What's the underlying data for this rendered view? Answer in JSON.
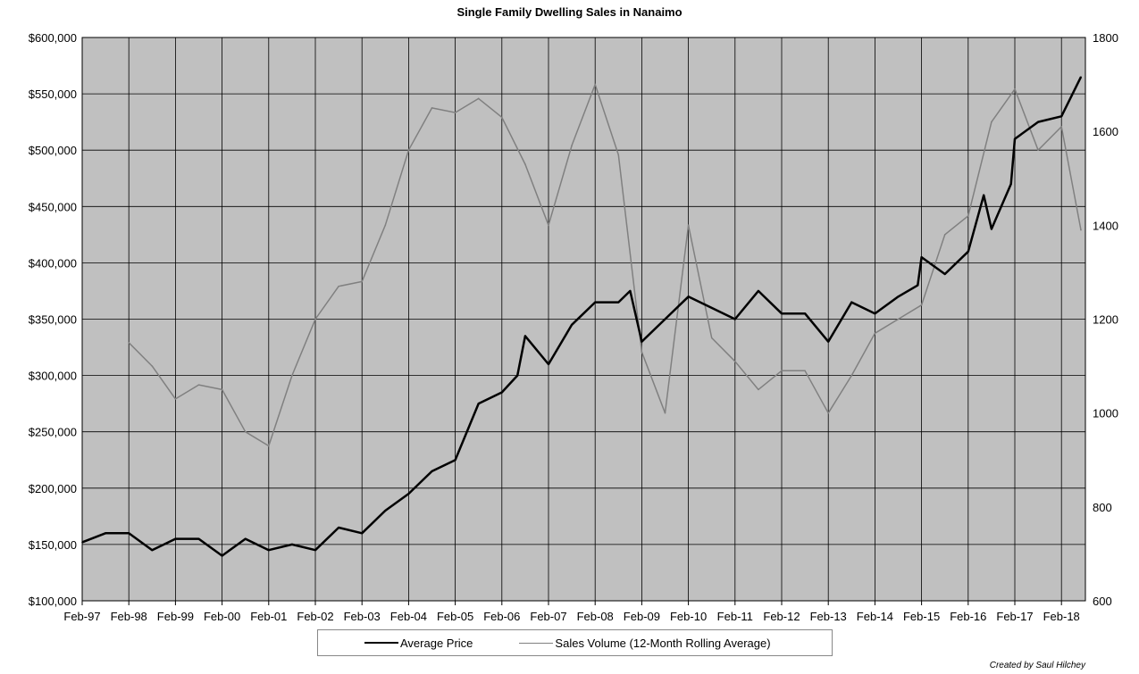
{
  "chart_data": {
    "type": "line",
    "title": "Single Family Dwelling Sales in Nanaimo",
    "credit": "Created by Saul Hilchey",
    "x_ticks": [
      "Feb-97",
      "Feb-98",
      "Feb-99",
      "Feb-00",
      "Feb-01",
      "Feb-02",
      "Feb-03",
      "Feb-04",
      "Feb-05",
      "Feb-06",
      "Feb-07",
      "Feb-08",
      "Feb-09",
      "Feb-10",
      "Feb-11",
      "Feb-12",
      "Feb-13",
      "Feb-14",
      "Feb-15",
      "Feb-16",
      "Feb-17",
      "Feb-18"
    ],
    "y_left": {
      "range": [
        100000,
        600000
      ],
      "ticks": [
        "$100,000",
        "$150,000",
        "$200,000",
        "$250,000",
        "$300,000",
        "$350,000",
        "$400,000",
        "$450,000",
        "$500,000",
        "$550,000",
        "$600,000"
      ]
    },
    "y_right": {
      "range": [
        600,
        1800
      ],
      "ticks": [
        "600",
        "800",
        "1000",
        "1200",
        "1400",
        "1600",
        "1800"
      ]
    },
    "grid": true,
    "legend_position": "bottom",
    "series": [
      {
        "name": "Average Price",
        "axis": "left",
        "color": "#000000",
        "x": [
          "1997-02",
          "1997-08",
          "1998-02",
          "1998-08",
          "1999-02",
          "1999-08",
          "2000-02",
          "2000-08",
          "2001-02",
          "2001-08",
          "2002-02",
          "2002-08",
          "2003-02",
          "2003-08",
          "2004-02",
          "2004-08",
          "2005-02",
          "2005-08",
          "2006-02",
          "2006-06",
          "2006-08",
          "2007-02",
          "2007-08",
          "2008-02",
          "2008-08",
          "2008-11",
          "2009-02",
          "2009-08",
          "2010-02",
          "2010-08",
          "2011-02",
          "2011-08",
          "2012-02",
          "2012-08",
          "2013-02",
          "2013-08",
          "2014-02",
          "2014-08",
          "2015-01",
          "2015-02",
          "2015-08",
          "2016-02",
          "2016-06",
          "2016-08",
          "2017-01",
          "2017-02",
          "2017-08",
          "2018-02",
          "2018-07"
        ],
        "values": [
          152000,
          160000,
          160000,
          145000,
          155000,
          155000,
          140000,
          155000,
          145000,
          150000,
          145000,
          165000,
          160000,
          180000,
          195000,
          215000,
          225000,
          275000,
          285000,
          300000,
          335000,
          310000,
          345000,
          365000,
          365000,
          375000,
          330000,
          350000,
          370000,
          360000,
          350000,
          375000,
          355000,
          355000,
          330000,
          365000,
          355000,
          370000,
          380000,
          405000,
          390000,
          410000,
          460000,
          430000,
          470000,
          510000,
          525000,
          530000,
          565000
        ]
      },
      {
        "name": "Sales Volume (12-Month Rolling Average)",
        "axis": "right",
        "color": "#808080",
        "x": [
          "1998-02",
          "1998-08",
          "1999-02",
          "1999-08",
          "2000-02",
          "2000-08",
          "2001-02",
          "2001-08",
          "2002-02",
          "2002-08",
          "2003-02",
          "2003-08",
          "2004-02",
          "2004-08",
          "2005-02",
          "2005-08",
          "2006-02",
          "2006-08",
          "2007-02",
          "2007-08",
          "2008-02",
          "2008-08",
          "2009-02",
          "2009-08",
          "2010-02",
          "2010-08",
          "2011-02",
          "2011-08",
          "2012-02",
          "2012-08",
          "2013-02",
          "2013-08",
          "2014-02",
          "2014-08",
          "2015-02",
          "2015-08",
          "2016-02",
          "2016-08",
          "2017-02",
          "2017-08",
          "2018-02",
          "2018-07"
        ],
        "values": [
          1150,
          1100,
          1030,
          1060,
          1050,
          960,
          930,
          1080,
          1200,
          1270,
          1280,
          1400,
          1560,
          1650,
          1640,
          1670,
          1630,
          1530,
          1400,
          1570,
          1700,
          1550,
          1130,
          1000,
          1400,
          1160,
          1110,
          1050,
          1090,
          1090,
          1000,
          1080,
          1170,
          1200,
          1230,
          1380,
          1420,
          1620,
          1690,
          1560,
          1610,
          1390
        ]
      }
    ]
  }
}
